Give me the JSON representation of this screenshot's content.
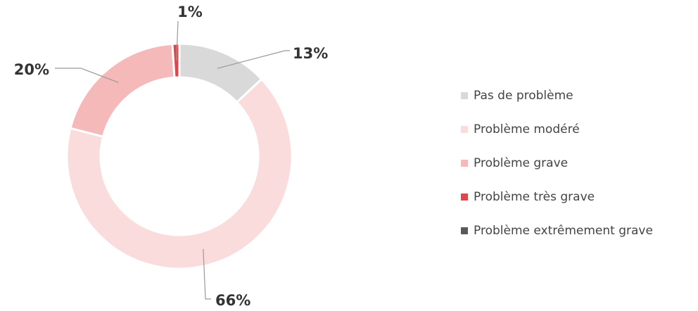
{
  "chart_data": {
    "type": "donut",
    "categories": [
      "Pas de problème",
      "Problème modéré",
      "Problème grave",
      "Problème très grave",
      "Problème extrêmement grave"
    ],
    "values": [
      13,
      66,
      20,
      1,
      0
    ],
    "value_labels": [
      "13%",
      "66%",
      "20%",
      "1%",
      null
    ],
    "colors": [
      "#d9d9d9",
      "#fbdcdd",
      "#f5b9ba",
      "#e0474c",
      "#595959"
    ],
    "legend": "right"
  }
}
